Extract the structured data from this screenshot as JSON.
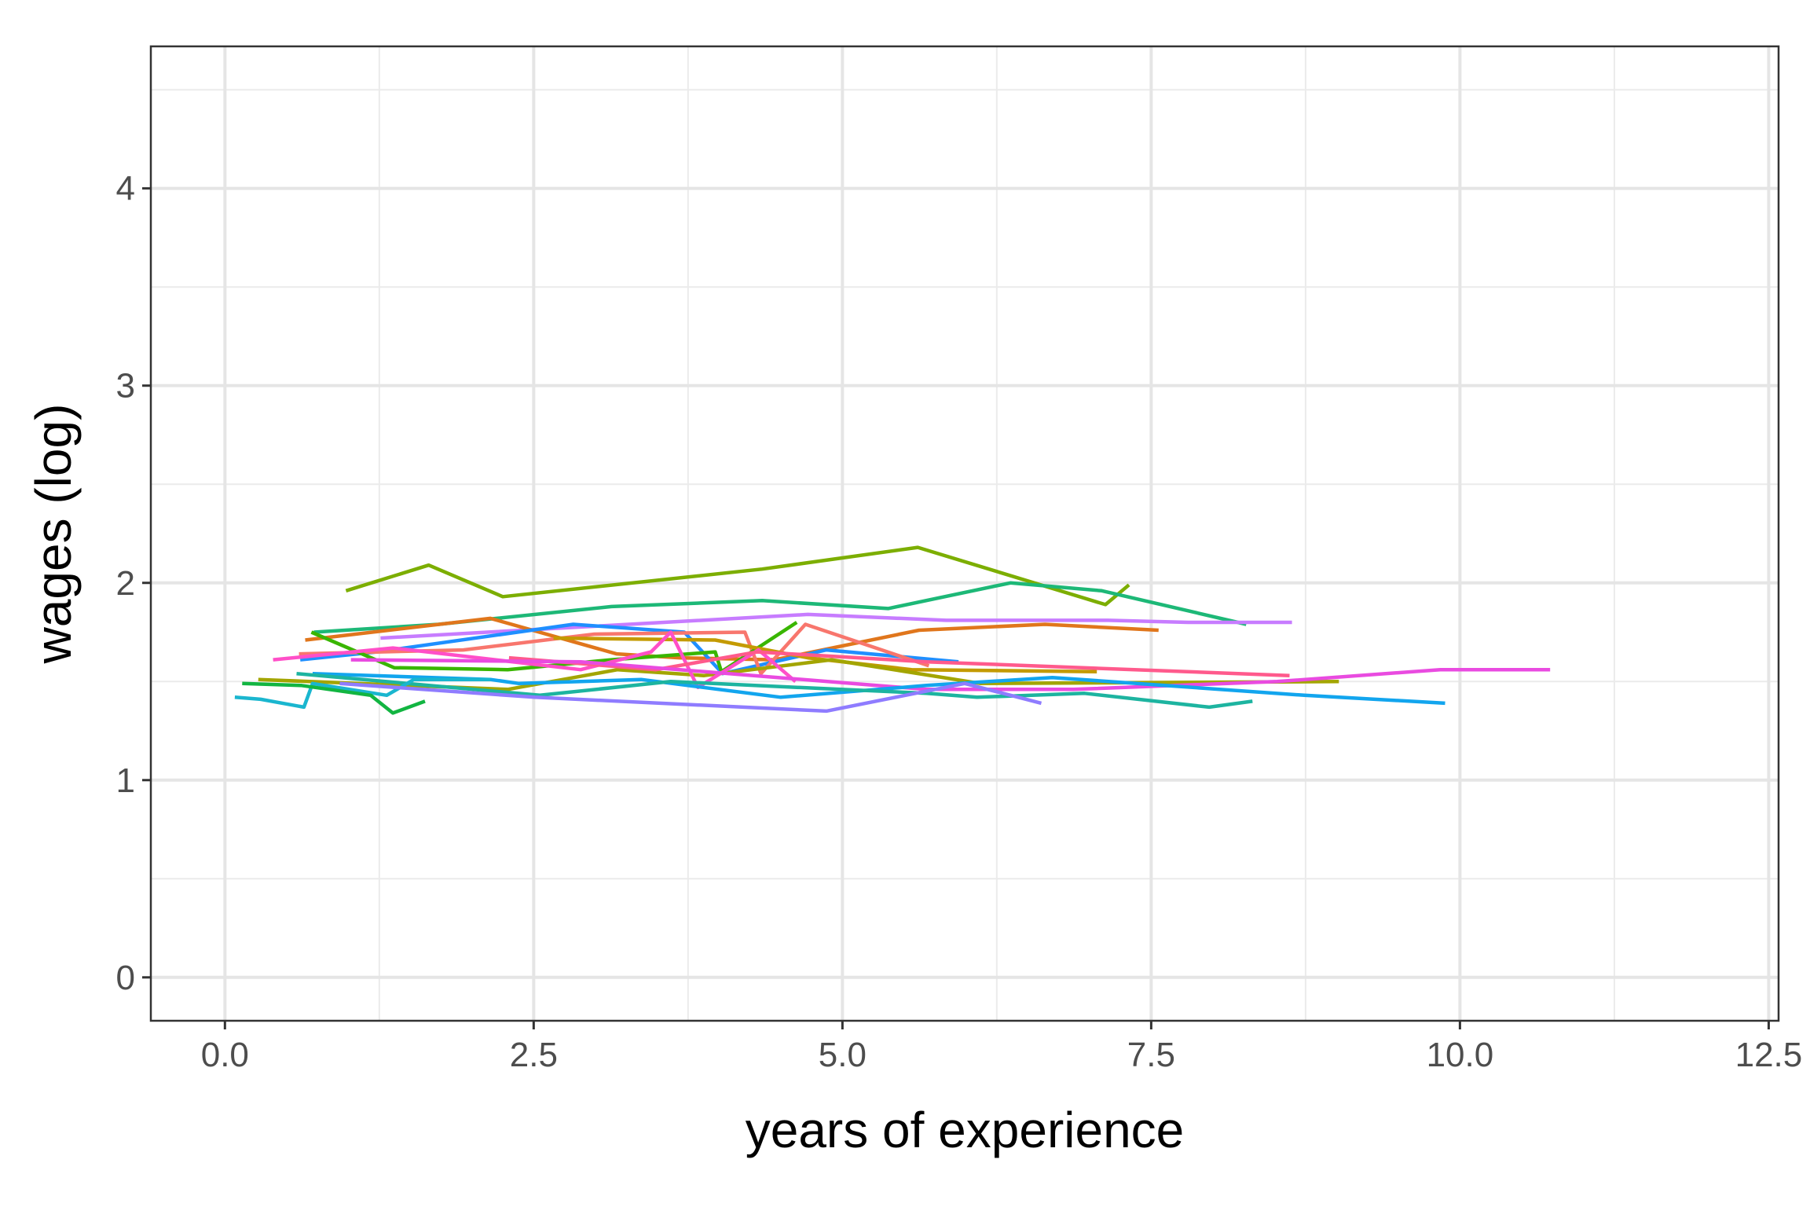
{
  "chart_data": {
    "type": "line",
    "title": "",
    "xlabel": "years of experience",
    "ylabel": "wages (log)",
    "xlim": [
      -0.6,
      12.58
    ],
    "ylim": [
      -0.22,
      4.72
    ],
    "x_ticks": [
      0,
      2.5,
      5,
      7.5,
      10,
      12.5
    ],
    "x_tick_labels": [
      "0.0",
      "2.5",
      "5.0",
      "7.5",
      "10.0",
      "12.5"
    ],
    "y_ticks": [
      0,
      1,
      2,
      3,
      4
    ],
    "y_tick_labels": [
      "0",
      "1",
      "2",
      "3",
      "4"
    ],
    "grid": true,
    "legend": "none",
    "series": [
      {
        "color": "#7CAE00",
        "x": [
          0.98,
          1.65,
          2.25,
          4.35,
          5.61,
          7.13,
          7.32
        ],
        "y": [
          1.96,
          2.09,
          1.93,
          2.07,
          2.18,
          1.89,
          1.99
        ]
      },
      {
        "color": "#1DB877",
        "x": [
          0.72,
          1.73,
          3.13,
          4.35,
          5.37,
          6.36,
          7.1,
          8.27
        ],
        "y": [
          1.75,
          1.79,
          1.88,
          1.91,
          1.87,
          2.0,
          1.96,
          1.79
        ]
      },
      {
        "color": "#C77CFF",
        "x": [
          1.26,
          4.72,
          5.84,
          7.15,
          7.8,
          8.64
        ],
        "y": [
          1.72,
          1.84,
          1.81,
          1.81,
          1.8,
          1.8
        ]
      },
      {
        "color": "#E0761C",
        "x": [
          0.65,
          2.15,
          3.17,
          3.68,
          4.45,
          5.62,
          6.64,
          7.56
        ],
        "y": [
          1.71,
          1.82,
          1.64,
          1.62,
          1.61,
          1.76,
          1.79,
          1.76
        ]
      },
      {
        "color": "#1F8FFF",
        "x": [
          0.61,
          1.23,
          2.82,
          3.72,
          4.03,
          4.87,
          5.94
        ],
        "y": [
          1.61,
          1.65,
          1.79,
          1.75,
          1.54,
          1.66,
          1.6
        ]
      },
      {
        "color": "#F8766D",
        "x": [
          0.6,
          1.93,
          2.99,
          4.21,
          4.34,
          4.7,
          5.7
        ],
        "y": [
          1.64,
          1.66,
          1.74,
          1.75,
          1.54,
          1.79,
          1.58
        ]
      },
      {
        "color": "#39B600",
        "x": [
          0.7,
          1.37,
          2.29,
          3.13,
          3.97,
          4.02,
          4.63
        ],
        "y": [
          1.75,
          1.57,
          1.56,
          1.61,
          1.65,
          1.55,
          1.8
        ]
      },
      {
        "color": "#C49A00",
        "x": [
          2.66,
          3.97,
          4.72,
          5.56,
          7.06
        ],
        "y": [
          1.72,
          1.71,
          1.62,
          1.56,
          1.55
        ]
      },
      {
        "color": "#A3A500",
        "x": [
          0.27,
          2.29,
          3.18,
          3.88,
          4.91,
          6.12,
          9.02
        ],
        "y": [
          1.51,
          1.46,
          1.56,
          1.53,
          1.61,
          1.49,
          1.5
        ]
      },
      {
        "color": "#FF4FC8",
        "x": [
          0.39,
          1.36,
          2.88,
          3.45,
          3.61,
          3.83,
          4.32,
          4.62
        ],
        "y": [
          1.61,
          1.67,
          1.56,
          1.65,
          1.75,
          1.47,
          1.66,
          1.5
        ]
      },
      {
        "color": "#FF5A8C",
        "x": [
          2.3,
          3.49,
          4.31,
          5.68,
          8.62
        ],
        "y": [
          1.62,
          1.56,
          1.65,
          1.6,
          1.53
        ]
      },
      {
        "color": "#E94BE0",
        "x": [
          1.02,
          2.88,
          5.68,
          6.87,
          8.52,
          9.84,
          10.73
        ],
        "y": [
          1.61,
          1.6,
          1.46,
          1.46,
          1.5,
          1.56,
          1.56
        ]
      },
      {
        "color": "#12A5EE",
        "x": [
          0.71,
          2.15,
          2.38,
          3.37,
          4.5,
          5.68,
          6.7,
          8.74,
          9.88
        ],
        "y": [
          1.54,
          1.51,
          1.49,
          1.51,
          1.42,
          1.48,
          1.52,
          1.43,
          1.39
        ]
      },
      {
        "color": "#1DB4A0",
        "x": [
          0.58,
          2.55,
          3.61,
          5.68,
          6.09,
          6.96,
          7.97,
          8.32
        ],
        "y": [
          1.54,
          1.43,
          1.5,
          1.44,
          1.42,
          1.44,
          1.37,
          1.4
        ]
      },
      {
        "color": "#1AB6CF",
        "x": [
          0.08,
          0.29,
          0.64,
          0.71,
          1.31,
          1.53,
          2.15
        ],
        "y": [
          1.42,
          1.41,
          1.37,
          1.49,
          1.43,
          1.51,
          1.51
        ]
      },
      {
        "color": "#12B541",
        "x": [
          0.14,
          0.62,
          1.18,
          1.36,
          1.62
        ],
        "y": [
          1.49,
          1.48,
          1.43,
          1.34,
          1.4
        ]
      },
      {
        "color": "#8F7CFF",
        "x": [
          0.93,
          2.51,
          4.87,
          5.99,
          6.61
        ],
        "y": [
          1.49,
          1.42,
          1.35,
          1.49,
          1.39
        ]
      }
    ]
  }
}
